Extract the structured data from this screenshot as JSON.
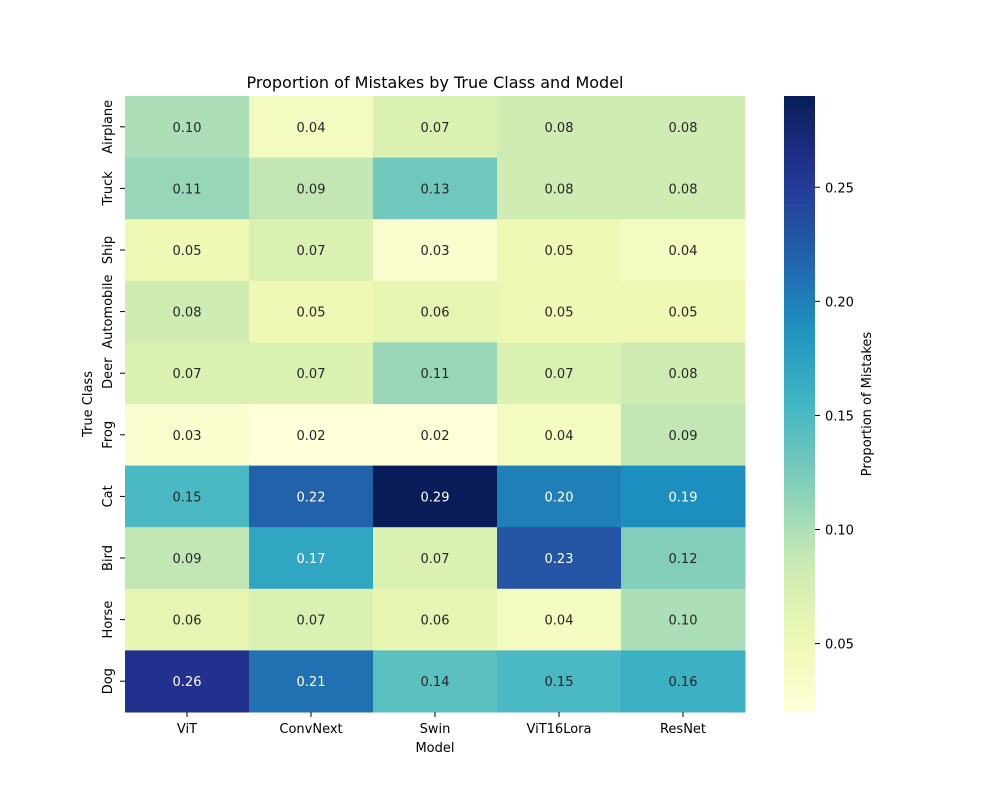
{
  "chart_data": {
    "type": "heatmap",
    "title": "Proportion of Mistakes by True Class and Model",
    "xlabel": "Model",
    "ylabel": "True Class",
    "colorbar_label": "Proportion of Mistakes",
    "colormap": "YlGnBu",
    "x_categories": [
      "ViT",
      "ConvNext",
      "Swin",
      "ViT16Lora",
      "ResNet"
    ],
    "y_categories": [
      "Airplane",
      "Truck",
      "Ship",
      "Automobile",
      "Deer",
      "Frog",
      "Cat",
      "Bird",
      "Horse",
      "Dog"
    ],
    "values": [
      [
        0.1,
        0.04,
        0.07,
        0.08,
        0.08
      ],
      [
        0.11,
        0.09,
        0.13,
        0.08,
        0.08
      ],
      [
        0.05,
        0.07,
        0.03,
        0.05,
        0.04
      ],
      [
        0.08,
        0.05,
        0.06,
        0.05,
        0.05
      ],
      [
        0.07,
        0.07,
        0.11,
        0.07,
        0.08
      ],
      [
        0.03,
        0.02,
        0.02,
        0.04,
        0.09
      ],
      [
        0.15,
        0.22,
        0.29,
        0.2,
        0.19
      ],
      [
        0.09,
        0.17,
        0.07,
        0.23,
        0.12
      ],
      [
        0.06,
        0.07,
        0.06,
        0.04,
        0.1
      ],
      [
        0.26,
        0.21,
        0.14,
        0.15,
        0.16
      ]
    ],
    "color_range": [
      0.02,
      0.29
    ],
    "colorbar_ticks": [
      "0.05",
      "0.10",
      "0.15",
      "0.20",
      "0.25"
    ],
    "annotations": true,
    "grid": false
  }
}
